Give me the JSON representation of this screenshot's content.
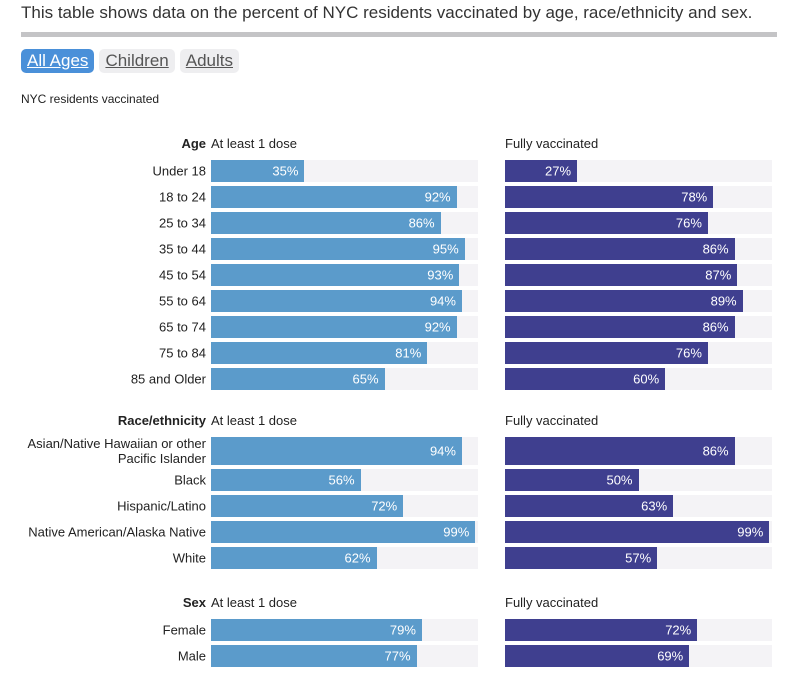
{
  "intro": "This table shows data on the percent of NYC residents vaccinated by age, race/ethnicity and sex.",
  "tabs": [
    {
      "label": "All Ages",
      "active": true
    },
    {
      "label": "Children",
      "active": false
    },
    {
      "label": "Adults",
      "active": false
    }
  ],
  "subtitle": "NYC residents vaccinated",
  "colors": {
    "dose": "#5b9bcb",
    "full": "#3f3f8f",
    "track": "#f4f3f6",
    "active_tab": "#4a90d9"
  },
  "chart_data": {
    "type": "bar",
    "series_names": [
      "At least 1 dose",
      "Fully vaccinated"
    ],
    "xlim": [
      0,
      100
    ],
    "groups": [
      {
        "title": "Age",
        "col1": "At least 1 dose",
        "col2": "Fully vaccinated",
        "rows": [
          {
            "label": "Under 18",
            "dose": 35,
            "full": 27
          },
          {
            "label": "18 to 24",
            "dose": 92,
            "full": 78
          },
          {
            "label": "25 to 34",
            "dose": 86,
            "full": 76
          },
          {
            "label": "35 to 44",
            "dose": 95,
            "full": 86
          },
          {
            "label": "45 to 54",
            "dose": 93,
            "full": 87
          },
          {
            "label": "55 to 64",
            "dose": 94,
            "full": 89
          },
          {
            "label": "65 to 74",
            "dose": 92,
            "full": 86
          },
          {
            "label": "75 to 84",
            "dose": 81,
            "full": 76
          },
          {
            "label": "85 and Older",
            "dose": 65,
            "full": 60
          }
        ]
      },
      {
        "title": "Race/ethnicity",
        "col1": "At least 1 dose",
        "col2": "Fully vaccinated",
        "rows": [
          {
            "label": "Asian/Native Hawaiian or other Pacific Islander",
            "dose": 94,
            "full": 86
          },
          {
            "label": "Black",
            "dose": 56,
            "full": 50
          },
          {
            "label": "Hispanic/Latino",
            "dose": 72,
            "full": 63
          },
          {
            "label": "Native American/Alaska Native",
            "dose": 99,
            "full": 99
          },
          {
            "label": "White",
            "dose": 62,
            "full": 57
          }
        ]
      },
      {
        "title": "Sex",
        "col1": "At least 1 dose",
        "col2": "Fully vaccinated",
        "rows": [
          {
            "label": "Female",
            "dose": 79,
            "full": 72
          },
          {
            "label": "Male",
            "dose": 77,
            "full": 69
          }
        ]
      }
    ]
  }
}
